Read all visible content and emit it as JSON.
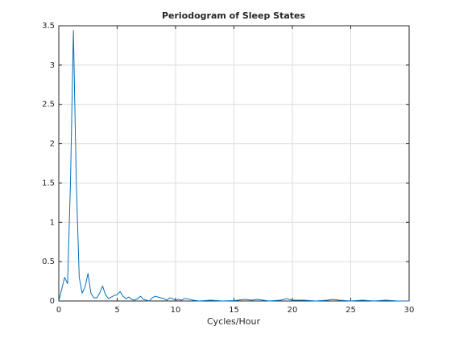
{
  "chart_data": {
    "type": "line",
    "title": "Periodogram of Sleep States",
    "xlabel": "Cycles/Hour",
    "x": [
      0,
      0.25,
      0.5,
      0.75,
      1.0,
      1.25,
      1.5,
      1.75,
      2.0,
      2.25,
      2.5,
      2.75,
      3.0,
      3.25,
      3.5,
      3.75,
      4.0,
      4.25,
      4.5,
      4.75,
      5.0,
      5.25,
      5.5,
      5.75,
      6.0,
      6.25,
      6.5,
      6.75,
      7.0,
      7.25,
      7.5,
      7.75,
      8.0,
      8.25,
      8.5,
      8.75,
      9.0,
      9.25,
      9.5,
      9.75,
      10,
      10.25,
      10.5,
      10.75,
      11,
      11.25,
      11.5,
      12,
      13,
      14,
      15,
      16,
      16.5,
      17,
      18,
      19,
      19.5,
      20,
      21,
      22,
      23,
      23.5,
      24,
      25,
      26,
      26.5,
      27,
      28,
      29,
      30
    ],
    "series": [
      {
        "color": "#0072bd",
        "values": [
          0,
          0.15,
          0.3,
          0.22,
          1.5,
          3.44,
          1.5,
          0.3,
          0.1,
          0.18,
          0.35,
          0.1,
          0.04,
          0.04,
          0.1,
          0.19,
          0.08,
          0.03,
          0.05,
          0.07,
          0.08,
          0.12,
          0.06,
          0.03,
          0.05,
          0.02,
          0.01,
          0.03,
          0.06,
          0.02,
          0.01,
          0,
          0.04,
          0.06,
          0.05,
          0.04,
          0.03,
          0.01,
          0.04,
          0.03,
          0.01,
          0.02,
          0.01,
          0.03,
          0.03,
          0.02,
          0.01,
          0,
          0.01,
          0,
          0.005,
          0.02,
          0.01,
          0.02,
          0,
          0.01,
          0.03,
          0.01,
          0.01,
          0,
          0.01,
          0.02,
          0.01,
          0,
          0.01,
          0.005,
          0,
          0.01,
          0,
          0
        ]
      }
    ],
    "xlim": [
      0,
      30
    ],
    "xticks": [
      0,
      5,
      10,
      15,
      20,
      25,
      30
    ],
    "ylim": [
      0,
      3.5
    ],
    "yticks": [
      0,
      0.5,
      1,
      1.5,
      2,
      2.5,
      3,
      3.5
    ],
    "grid": true
  }
}
